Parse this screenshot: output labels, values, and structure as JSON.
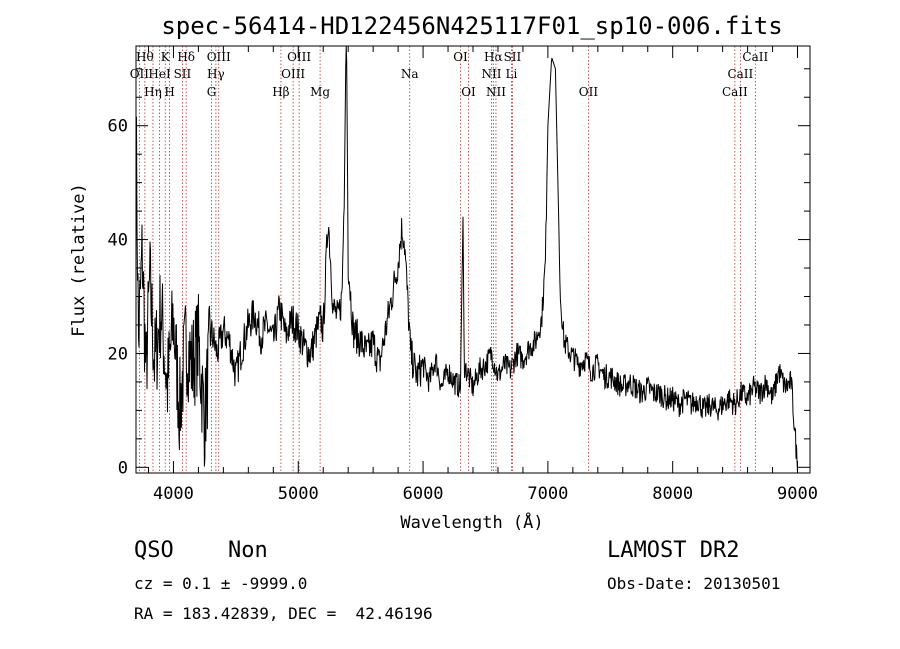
{
  "chart_data": {
    "type": "line",
    "title": "spec-56414-HD122456N425117F01_sp10-006.fits",
    "xlabel": "Wavelength (Å)",
    "ylabel": "Flux (relative)",
    "xlim": [
      3700,
      9100
    ],
    "ylim": [
      -1,
      74
    ],
    "xticks": [
      4000,
      5000,
      6000,
      7000,
      8000,
      9000
    ],
    "yticks": [
      0,
      20,
      40,
      60
    ],
    "line_color": "#000000",
    "marker_color": "#b03030",
    "spectrum_anchors": [
      [
        3700,
        62
      ],
      [
        3720,
        22
      ],
      [
        3750,
        38
      ],
      [
        3780,
        16
      ],
      [
        3810,
        33
      ],
      [
        3850,
        18
      ],
      [
        3900,
        28
      ],
      [
        3950,
        14
      ],
      [
        4000,
        26
      ],
      [
        4050,
        10
      ],
      [
        4100,
        22
      ],
      [
        4150,
        18
      ],
      [
        4200,
        22
      ],
      [
        4250,
        8
      ],
      [
        4300,
        24
      ],
      [
        4350,
        20
      ],
      [
        4400,
        24
      ],
      [
        4450,
        22
      ],
      [
        4500,
        16
      ],
      [
        4550,
        21
      ],
      [
        4600,
        25
      ],
      [
        4650,
        27
      ],
      [
        4700,
        23
      ],
      [
        4750,
        25
      ],
      [
        4800,
        22
      ],
      [
        4850,
        28
      ],
      [
        4900,
        23
      ],
      [
        4950,
        26
      ],
      [
        5000,
        24
      ],
      [
        5050,
        21
      ],
      [
        5100,
        20
      ],
      [
        5150,
        24
      ],
      [
        5180,
        26
      ],
      [
        5200,
        24
      ],
      [
        5240,
        44
      ],
      [
        5280,
        28
      ],
      [
        5320,
        26
      ],
      [
        5350,
        30
      ],
      [
        5370,
        50
      ],
      [
        5385,
        80
      ],
      [
        5400,
        36
      ],
      [
        5440,
        24
      ],
      [
        5500,
        22
      ],
      [
        5550,
        20
      ],
      [
        5600,
        22
      ],
      [
        5650,
        18
      ],
      [
        5700,
        24
      ],
      [
        5750,
        30
      ],
      [
        5800,
        36
      ],
      [
        5830,
        42
      ],
      [
        5850,
        40
      ],
      [
        5880,
        28
      ],
      [
        5900,
        20
      ],
      [
        5950,
        16
      ],
      [
        6000,
        18
      ],
      [
        6050,
        15
      ],
      [
        6100,
        19
      ],
      [
        6150,
        14
      ],
      [
        6200,
        17
      ],
      [
        6250,
        15
      ],
      [
        6300,
        14
      ],
      [
        6320,
        44
      ],
      [
        6330,
        18
      ],
      [
        6400,
        14
      ],
      [
        6450,
        17
      ],
      [
        6500,
        18
      ],
      [
        6550,
        20
      ],
      [
        6600,
        16
      ],
      [
        6650,
        18
      ],
      [
        6700,
        17
      ],
      [
        6750,
        20
      ],
      [
        6800,
        19
      ],
      [
        6850,
        21
      ],
      [
        6900,
        22
      ],
      [
        6950,
        26
      ],
      [
        6980,
        36
      ],
      [
        7000,
        60
      ],
      [
        7030,
        72
      ],
      [
        7060,
        70
      ],
      [
        7080,
        50
      ],
      [
        7100,
        30
      ],
      [
        7130,
        22
      ],
      [
        7180,
        20
      ],
      [
        7250,
        18
      ],
      [
        7300,
        19
      ],
      [
        7350,
        17
      ],
      [
        7400,
        18
      ],
      [
        7450,
        16
      ],
      [
        7500,
        16
      ],
      [
        7550,
        15
      ],
      [
        7600,
        14
      ],
      [
        7650,
        15
      ],
      [
        7700,
        14
      ],
      [
        7750,
        13
      ],
      [
        7800,
        14
      ],
      [
        7850,
        13
      ],
      [
        7900,
        13
      ],
      [
        7950,
        12
      ],
      [
        8000,
        12
      ],
      [
        8050,
        11
      ],
      [
        8100,
        12
      ],
      [
        8150,
        11
      ],
      [
        8200,
        12
      ],
      [
        8250,
        10
      ],
      [
        8300,
        11
      ],
      [
        8350,
        10
      ],
      [
        8400,
        11
      ],
      [
        8450,
        12
      ],
      [
        8500,
        11
      ],
      [
        8550,
        13
      ],
      [
        8600,
        12
      ],
      [
        8650,
        14
      ],
      [
        8700,
        13
      ],
      [
        8750,
        15
      ],
      [
        8800,
        12
      ],
      [
        8850,
        17
      ],
      [
        8900,
        14
      ],
      [
        8950,
        15
      ],
      [
        9000,
        0
      ]
    ],
    "line_markers": [
      {
        "label": "Hθ",
        "wave": 3771,
        "row": 0
      },
      {
        "label": "OII",
        "wave": 3727,
        "row": 1
      },
      {
        "label": "Hη",
        "wave": 3836,
        "row": 2
      },
      {
        "label": "K",
        "wave": 3934,
        "row": 0
      },
      {
        "label": "HeI",
        "wave": 3889,
        "row": 1
      },
      {
        "label": "H",
        "wave": 3969,
        "row": 2
      },
      {
        "label": "SII",
        "wave": 4072,
        "row": 1
      },
      {
        "label": "Hδ",
        "wave": 4102,
        "row": 0
      },
      {
        "label": "OIII",
        "wave": 4363,
        "row": 0
      },
      {
        "label": "Hγ",
        "wave": 4340,
        "row": 1
      },
      {
        "label": "G",
        "wave": 4305,
        "row": 2
      },
      {
        "label": "Hβ",
        "wave": 4861,
        "row": 2
      },
      {
        "label": "OIII",
        "wave": 5007,
        "row": 0
      },
      {
        "label": "OIII",
        "wave": 4959,
        "row": 1
      },
      {
        "label": "Mg",
        "wave": 5175,
        "row": 2
      },
      {
        "label": "Na",
        "wave": 5893,
        "row": 1
      },
      {
        "label": "OI",
        "wave": 6300,
        "row": 0
      },
      {
        "label": "OI",
        "wave": 6364,
        "row": 2
      },
      {
        "label": "Hα",
        "wave": 6563,
        "row": 0
      },
      {
        "label": "SII",
        "wave": 6716,
        "row": 0
      },
      {
        "label": "NII",
        "wave": 6548,
        "row": 1
      },
      {
        "label": "Li",
        "wave": 6708,
        "row": 1
      },
      {
        "label": "NII",
        "wave": 6584,
        "row": 2
      },
      {
        "label": "OII",
        "wave": 7325,
        "row": 2
      },
      {
        "label": "CaII",
        "wave": 8662,
        "row": 0
      },
      {
        "label": "CaII",
        "wave": 8542,
        "row": 1
      },
      {
        "label": "CaII",
        "wave": 8498,
        "row": 2
      }
    ]
  },
  "info": {
    "class": "QSO",
    "subclass": "Non",
    "redshift": "cz = 0.1 ± -9999.0",
    "coords": "RA = 183.42839, DEC =  42.46196",
    "survey": "LAMOST DR2",
    "obs_date": "Obs-Date: 20130501"
  }
}
